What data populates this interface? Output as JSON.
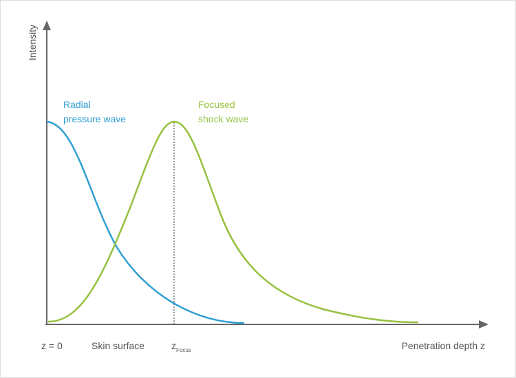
{
  "axes": {
    "y_label": "Intensity",
    "x_label": "Penetration depth z"
  },
  "curves": [
    {
      "label_lines": [
        "Radial",
        "pressure wave"
      ]
    },
    {
      "label_lines": [
        "Focused",
        "shock wave"
      ]
    }
  ],
  "x_markers": [
    "z = 0",
    "Skin surface",
    {
      "symbol": "z",
      "subscript": "Focus"
    }
  ]
}
